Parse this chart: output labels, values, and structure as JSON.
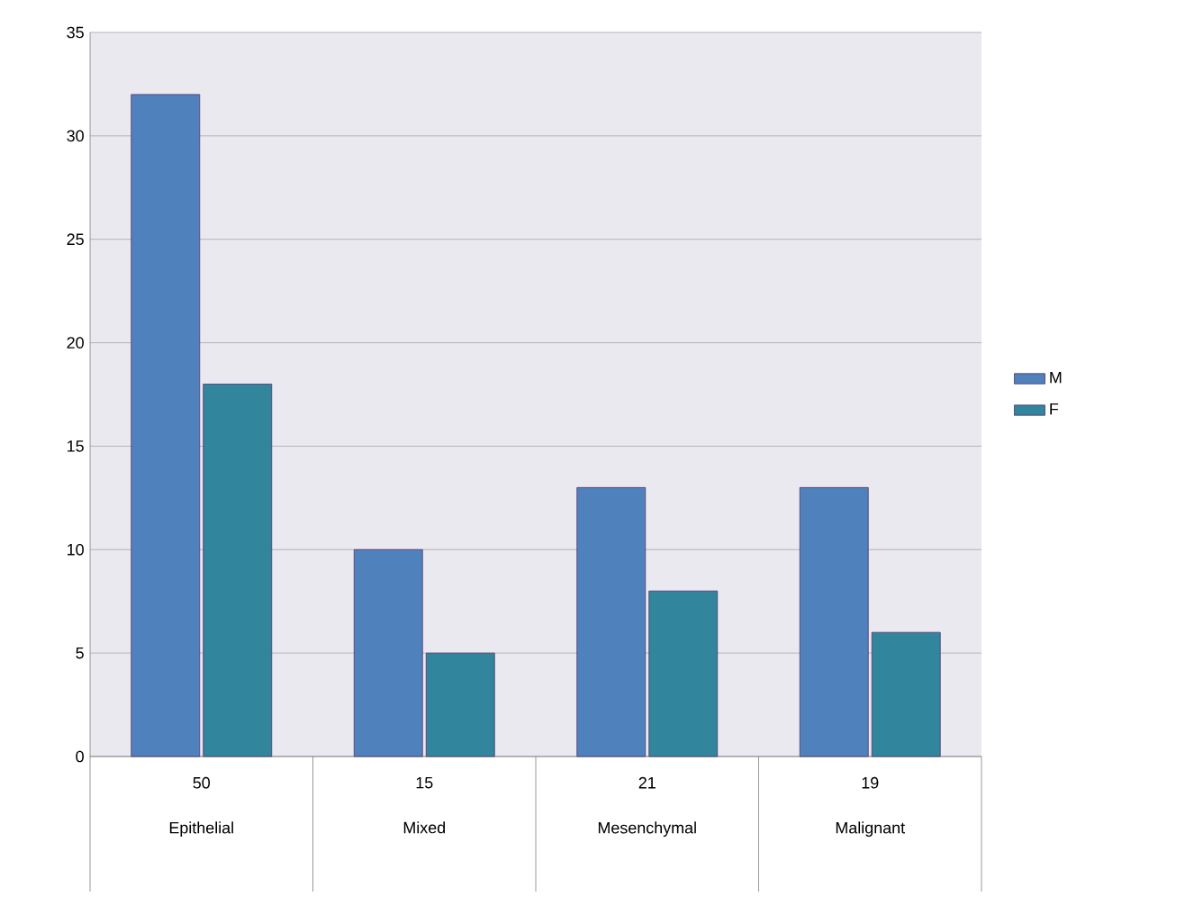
{
  "chart_data": {
    "type": "bar",
    "categories": [
      "Epithelial",
      "Mixed",
      "Mesenchymal",
      "Malignant"
    ],
    "series": [
      {
        "name": "M",
        "color": "#4f81bd",
        "values": [
          32,
          10,
          13,
          13
        ]
      },
      {
        "name": "F",
        "color": "#31859c",
        "values": [
          18,
          5,
          8,
          6
        ]
      }
    ],
    "totals": [
      "50",
      "15",
      "21",
      "19"
    ],
    "ylim": [
      0,
      35
    ],
    "yticks": [
      0,
      5,
      10,
      15,
      20,
      25,
      30,
      35
    ],
    "grid": "y",
    "legend": "right"
  }
}
